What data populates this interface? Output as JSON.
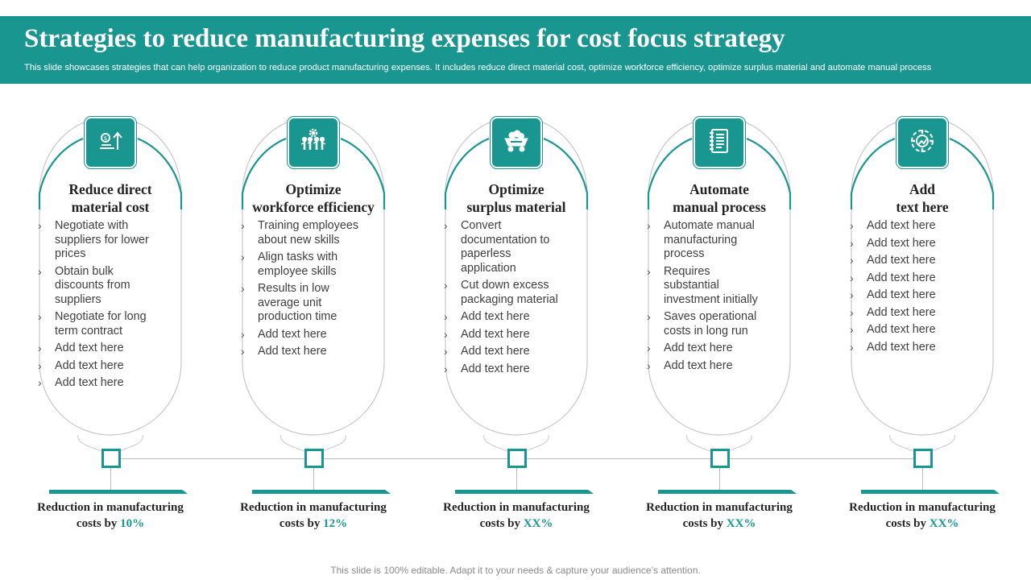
{
  "header": {
    "title": "Strategies to reduce manufacturing expenses for cost focus strategy",
    "subtitle": "This slide showcases strategies that can help organization to reduce product manufacturing expenses. It includes reduce direct material cost, optimize workforce efficiency, optimize surplus material and automate manual process"
  },
  "theme": {
    "accent": "#1a9690",
    "outline": "#c8c8c8"
  },
  "columns": [
    {
      "icon": "money-growth-icon",
      "title_line1": "Reduce direct",
      "title_line2": "material cost",
      "bullets": [
        "Negotiate with suppliers for lower prices",
        "Obtain bulk discounts from suppliers",
        "Negotiate for long term contract",
        "Add text here",
        "Add text here",
        "Add text here"
      ],
      "result_line1": "Reduction in manufacturing",
      "result_line2": "costs by",
      "result_value": "10%"
    },
    {
      "icon": "team-gear-icon",
      "title_line1": "Optimize",
      "title_line2": "workforce efficiency",
      "bullets": [
        "Training employees about new skills",
        "Align tasks with employee skills",
        "Results in low average unit production time",
        "Add text here",
        "Add text here"
      ],
      "result_line1": "Reduction in manufacturing",
      "result_line2": "costs by",
      "result_value": "12%"
    },
    {
      "icon": "mine-cart-icon",
      "title_line1": "Optimize",
      "title_line2": "surplus material",
      "bullets": [
        "Convert documentation to paperless application",
        "Cut down excess packaging material",
        "Add text here",
        "Add text here",
        "Add text here",
        "Add text here"
      ],
      "result_line1": "Reduction in manufacturing",
      "result_line2": "costs by",
      "result_value": "XX%"
    },
    {
      "icon": "notebook-icon",
      "title_line1": "Automate",
      "title_line2": "manual process",
      "bullets": [
        "Automate manual manufacturing process",
        "Requires substantial investment initially",
        "Saves operational costs in long run",
        "Add text here",
        "Add text here"
      ],
      "result_line1": "Reduction in manufacturing",
      "result_line2": "costs by",
      "result_value": "XX%"
    },
    {
      "icon": "gear-target-icon",
      "title_line1": "Add",
      "title_line2": "text here",
      "bullets": [
        "Add text here",
        "Add text here",
        "Add text here",
        "Add text here",
        "Add text here",
        "Add text here",
        "Add text here",
        "Add text here"
      ],
      "result_line1": "Reduction in manufacturing",
      "result_line2": "costs by",
      "result_value": "XX%"
    }
  ],
  "footer": "This slide is 100% editable. Adapt it to your needs & capture your audience’s attention."
}
